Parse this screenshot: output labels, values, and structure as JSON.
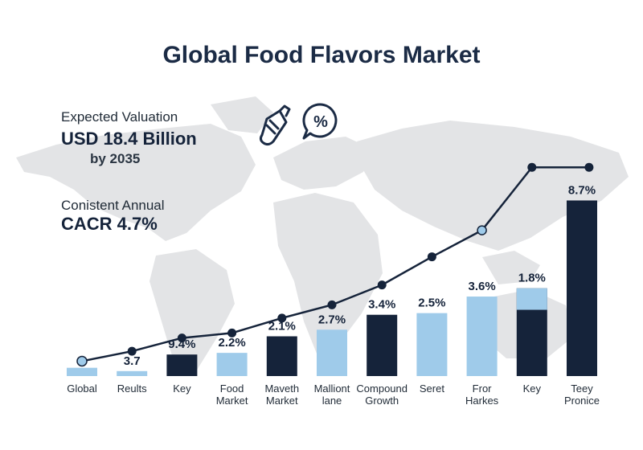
{
  "header": {
    "title": "Global Food Flavors Market"
  },
  "stats": {
    "valuation_label": "Expected Valuation",
    "valuation_value": "USD 18.4 Billion",
    "valuation_year": "by 2035",
    "growth_label": "Conistent Annual",
    "growth_value": "CACR 4.7%"
  },
  "icons": [
    "spray-bottle-icon",
    "percent-bubble-icon"
  ],
  "colors": {
    "dark": "#15233a",
    "light": "#9fcbea",
    "map": "#e3e4e6",
    "line": "#15233a",
    "title": "#1b2b45"
  },
  "chart_data": {
    "type": "bar",
    "title": "Global Food Flavors Market",
    "xlabel": "",
    "ylabel": "",
    "categories": [
      [
        "Global"
      ],
      [
        "Reults"
      ],
      [
        "Key"
      ],
      [
        "Food",
        "Market"
      ],
      [
        "Maveth",
        "Market"
      ],
      [
        "Malliont",
        "lane"
      ],
      [
        "Compound",
        "Growth"
      ],
      [
        "Seret"
      ],
      [
        "Fror",
        "Harkes"
      ],
      [
        "Key"
      ],
      [
        "Teey",
        "Pronice"
      ]
    ],
    "bars": [
      {
        "value": 0.5,
        "label": "",
        "color": "light"
      },
      {
        "value": 0.3,
        "label": "3.7",
        "color": "light"
      },
      {
        "value": 1.3,
        "label": "9.4%",
        "color": "dark"
      },
      {
        "value": 1.4,
        "label": "2.2%",
        "color": "light"
      },
      {
        "value": 2.4,
        "label": "2.1%",
        "color": "dark"
      },
      {
        "value": 2.8,
        "label": "2.7%",
        "color": "light"
      },
      {
        "value": 3.7,
        "label": "3.4%",
        "color": "dark"
      },
      {
        "value": 3.8,
        "label": "2.5%",
        "color": "light"
      },
      {
        "value": 4.8,
        "label": "3.6%",
        "color": "light"
      },
      {
        "value": 5.3,
        "label": "1.8%",
        "color": "dark",
        "top_value": 1.3
      },
      {
        "value": 10.6,
        "label": "8.7%",
        "color": "dark"
      }
    ],
    "trend_line": [
      0.9,
      1.5,
      2.3,
      2.6,
      3.5,
      4.3,
      5.5,
      7.2,
      8.8,
      12.6,
      12.6
    ],
    "ylim": [
      0,
      13
    ],
    "grid": false,
    "legend": "none"
  }
}
